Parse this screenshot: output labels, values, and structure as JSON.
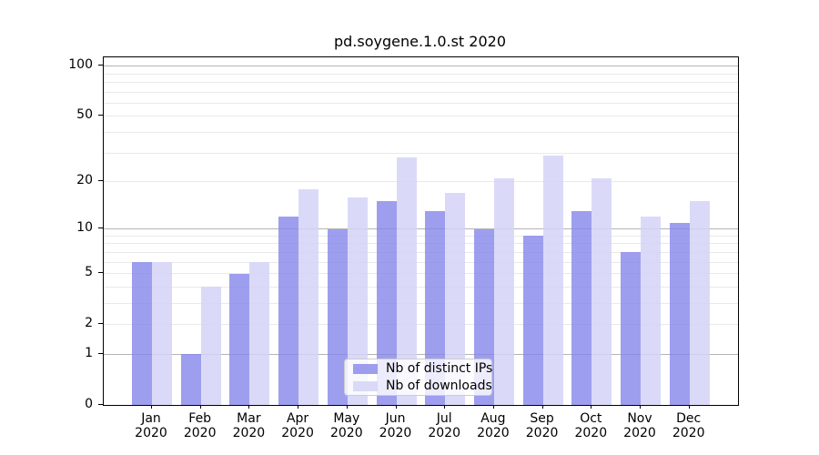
{
  "title": "pd.soygene.1.0.st 2020",
  "chart_data": {
    "type": "bar",
    "title": "pd.soygene.1.0.st 2020",
    "categories": [
      "Jan",
      "Feb",
      "Mar",
      "Apr",
      "May",
      "Jun",
      "Jul",
      "Aug",
      "Sep",
      "Oct",
      "Nov",
      "Dec"
    ],
    "category_sublabel": "2020",
    "series": [
      {
        "name": "Nb of distinct IPs",
        "color": "#8686eb",
        "alpha": 0.8,
        "values": [
          6,
          1,
          5,
          12,
          10,
          15,
          13,
          10,
          9,
          13,
          7,
          11
        ]
      },
      {
        "name": "Nb of downloads",
        "color": "#d3d3f7",
        "alpha": 0.85,
        "values": [
          6,
          4,
          6,
          18,
          16,
          28,
          17,
          21,
          29,
          21,
          12,
          15
        ]
      }
    ],
    "xlabel": "",
    "ylabel": "",
    "yscale": "log1p",
    "ylim": [
      0,
      113
    ],
    "yticks": [
      0,
      1,
      2,
      5,
      10,
      20,
      50,
      100
    ],
    "grid": {
      "major_values": [
        1,
        10,
        100
      ],
      "minor_values": [
        2,
        3,
        4,
        5,
        6,
        7,
        8,
        9,
        20,
        30,
        40,
        50,
        60,
        70,
        80,
        90
      ],
      "major_color": "#b4b4b4",
      "minor_color": "#e9e9e9"
    },
    "legend_position": "lower center"
  },
  "colors": {
    "background": "#ffffff",
    "axis": "#000000",
    "text": "#000000"
  }
}
